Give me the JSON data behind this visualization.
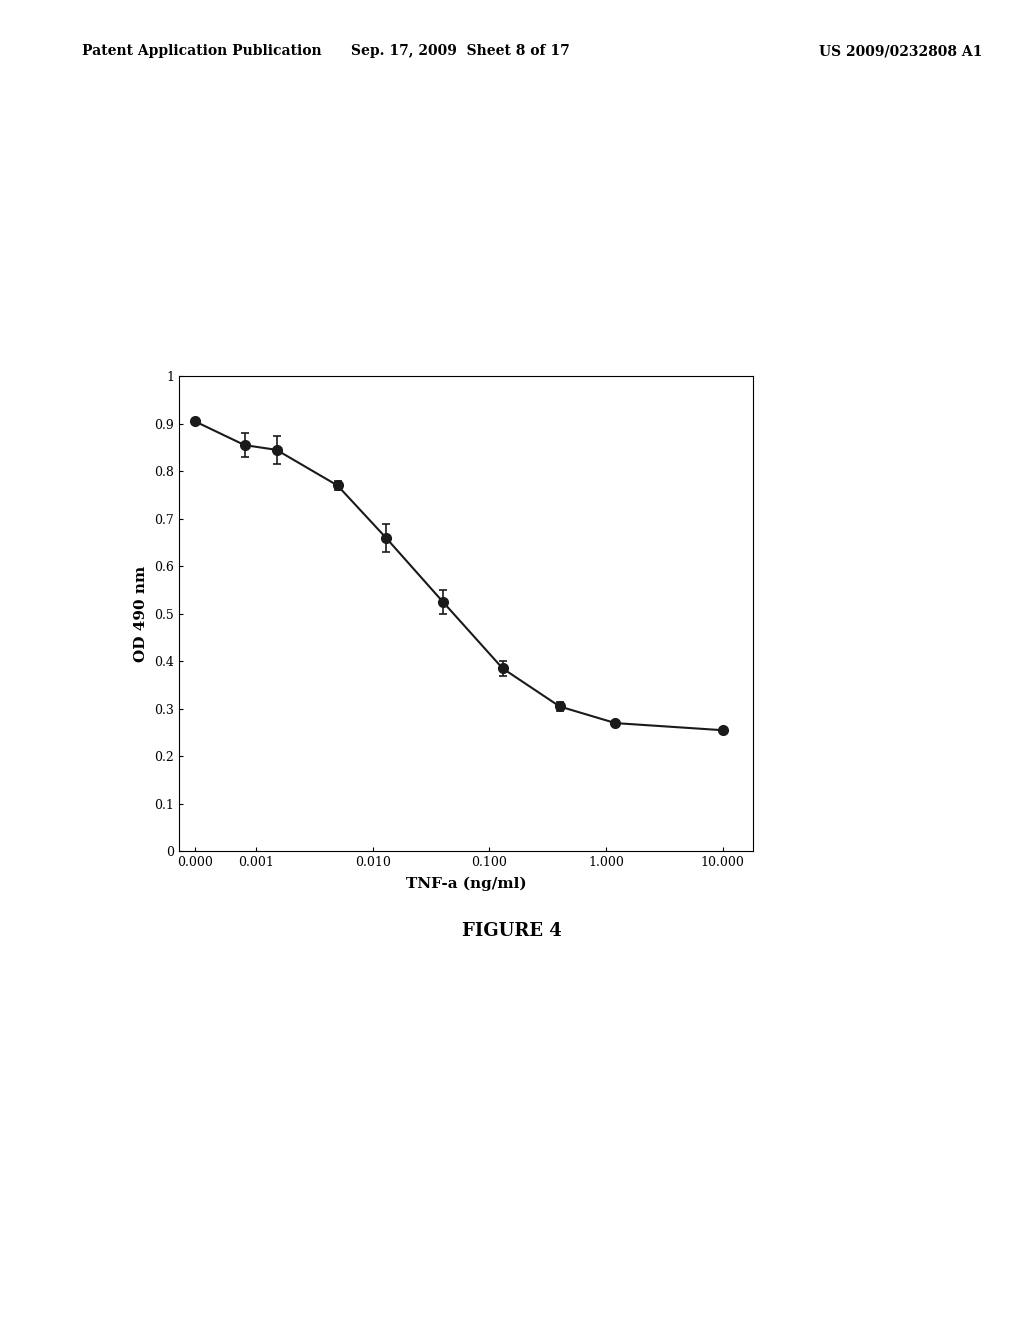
{
  "title": "FIGURE 4",
  "xlabel": "TNF-a (ng/ml)",
  "ylabel": "OD 490 nm",
  "x_values": [
    0.0003,
    0.0008,
    0.0015,
    0.005,
    0.013,
    0.04,
    0.13,
    0.4,
    1.2,
    10.0
  ],
  "y_values": [
    0.905,
    0.855,
    0.845,
    0.77,
    0.66,
    0.525,
    0.385,
    0.305,
    0.27,
    0.255
  ],
  "y_errors": [
    0.005,
    0.025,
    0.03,
    0.01,
    0.03,
    0.025,
    0.015,
    0.01,
    0.005,
    0.005
  ],
  "ylim": [
    0,
    1.0
  ],
  "yticks": [
    0,
    0.1,
    0.2,
    0.3,
    0.4,
    0.5,
    0.6,
    0.7,
    0.8,
    0.9,
    1
  ],
  "ytick_labels": [
    "0",
    "0.1",
    "0.2",
    "0.3",
    "0.4",
    "0.5",
    "0.6",
    "0.7",
    "0.8",
    "0.9",
    "1"
  ],
  "xtick_labels": [
    "0.000",
    "0.001",
    "0.010",
    "0.100",
    "1.000",
    "10.000"
  ],
  "xtick_positions": [
    0.0003,
    0.001,
    0.01,
    0.1,
    1.0,
    10.0
  ],
  "xlim_left": 0.00022,
  "xlim_right": 18.0,
  "line_color": "#1a1a1a",
  "marker_color": "#1a1a1a",
  "marker_size": 7,
  "line_width": 1.5,
  "bg_color": "#ffffff",
  "plot_bg_color": "#ffffff",
  "header_left": "Patent Application Publication",
  "header_mid": "Sep. 17, 2009  Sheet 8 of 17",
  "header_right": "US 2009/0232808 A1",
  "figure_label": "FIGURE 4"
}
